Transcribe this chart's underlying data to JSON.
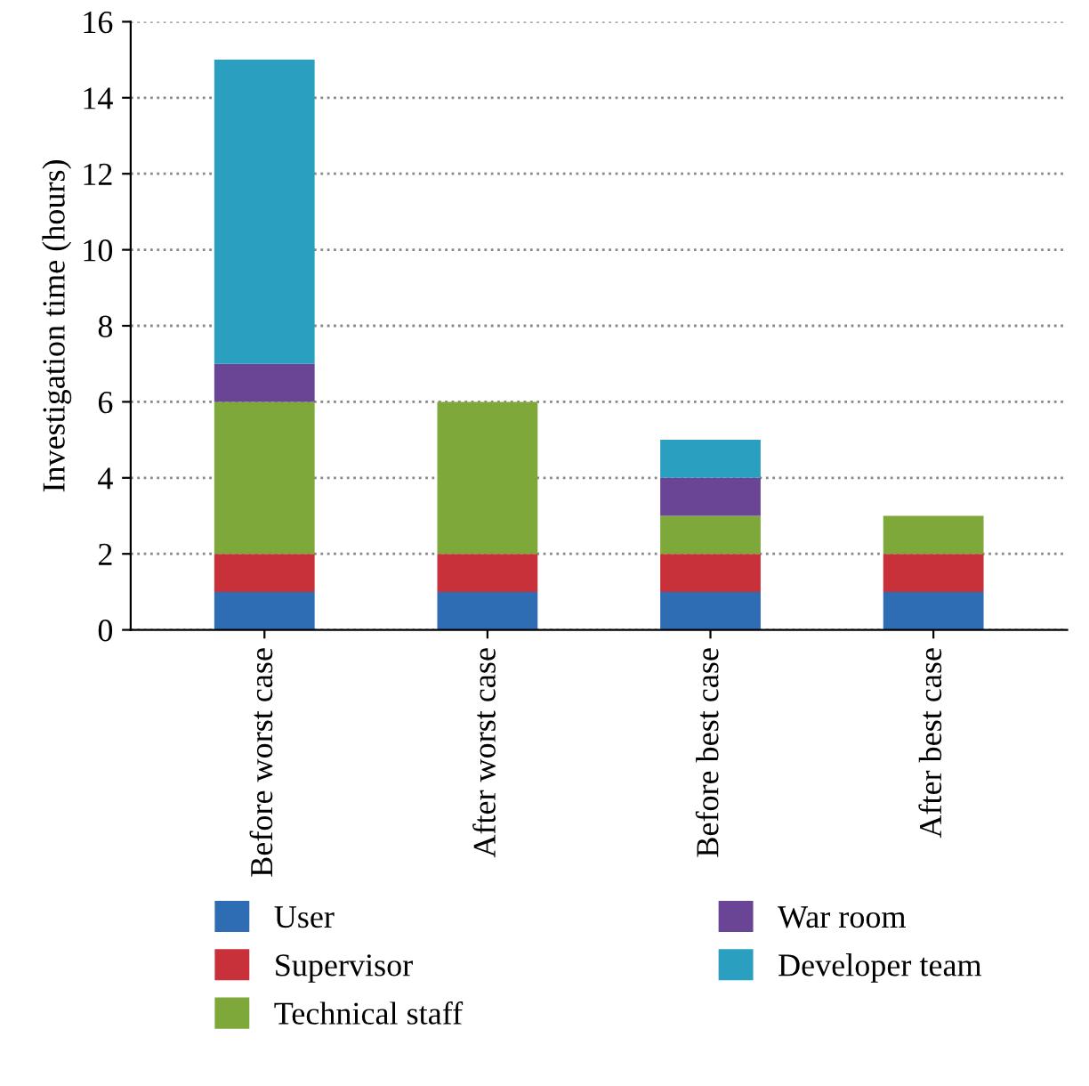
{
  "chart_data": {
    "type": "bar",
    "stacked": true,
    "ylabel": "Investigation time (hours)",
    "categories": [
      "Before worst case",
      "After worst case",
      "Before best case",
      "After best case"
    ],
    "series": [
      {
        "name": "User",
        "color": "#2e6db4",
        "values": [
          1,
          1,
          1,
          1
        ]
      },
      {
        "name": "Supervisor",
        "color": "#c8313a",
        "values": [
          1,
          1,
          1,
          1
        ]
      },
      {
        "name": "Technical staff",
        "color": "#7fa83a",
        "values": [
          4,
          4,
          1,
          1
        ]
      },
      {
        "name": "War room",
        "color": "#6a4596",
        "values": [
          1,
          0,
          1,
          0
        ]
      },
      {
        "name": "Developer team",
        "color": "#2a9fc0",
        "values": [
          8,
          0,
          1,
          0
        ]
      }
    ],
    "ylim": [
      0,
      16
    ],
    "yticks": [
      0,
      2,
      4,
      6,
      8,
      10,
      12,
      14,
      16
    ],
    "grid": "y",
    "legend": "bottom"
  }
}
